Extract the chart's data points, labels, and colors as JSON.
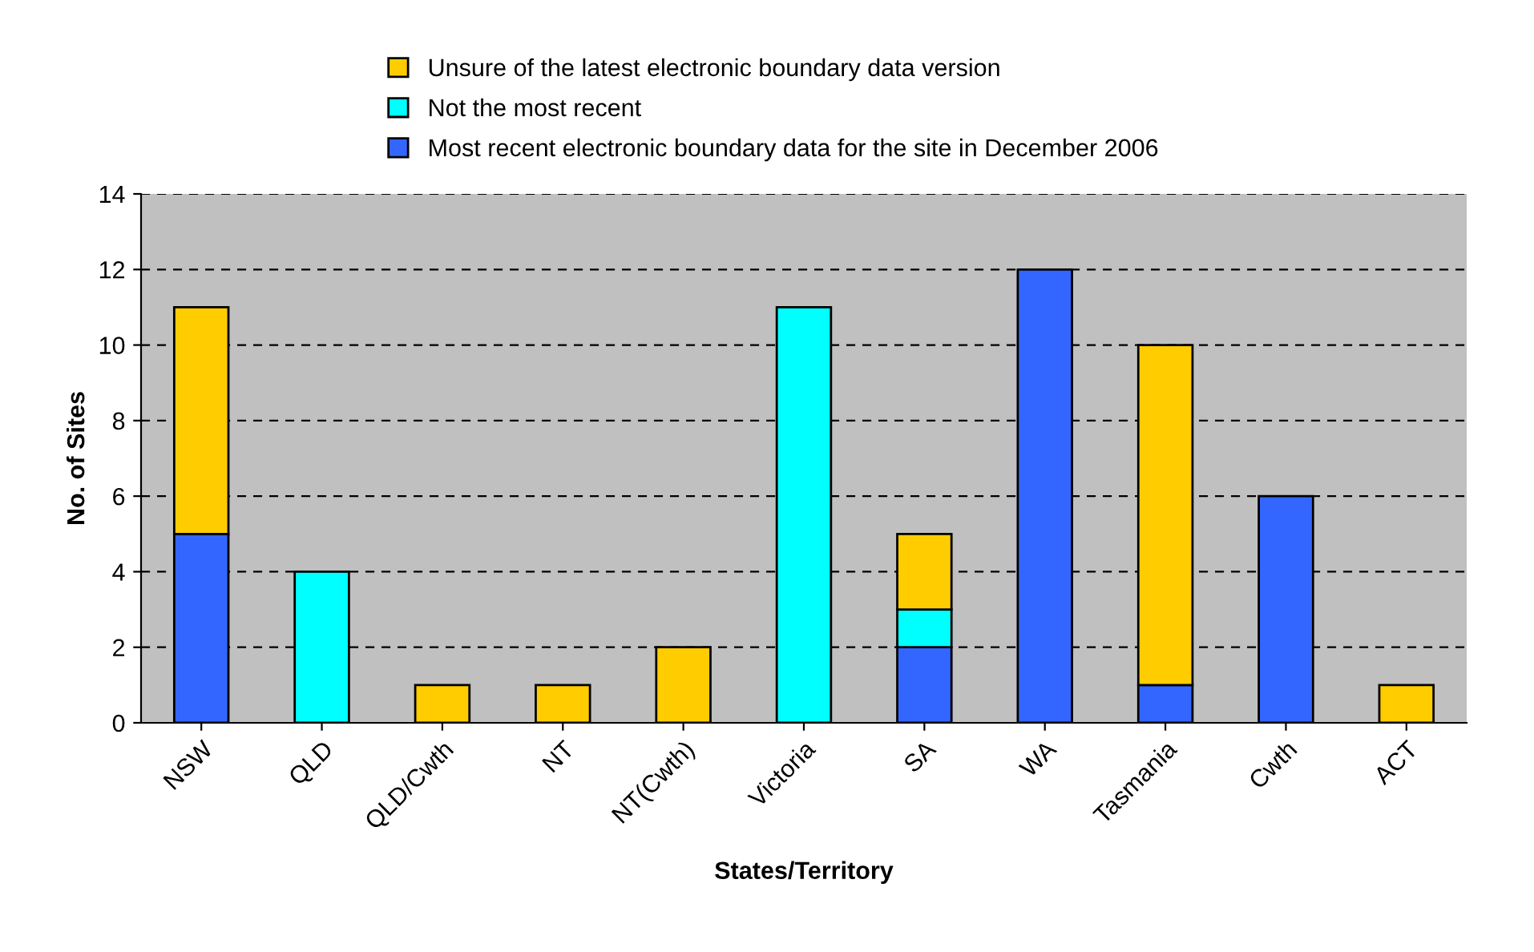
{
  "chart_data": {
    "type": "bar",
    "stacked": true,
    "xlabel": "States/Territory",
    "ylabel": "No. of Sites",
    "categories": [
      "NSW",
      "QLD",
      "QLD/Cwth",
      "NT",
      "NT(Cwth)",
      "Victoria",
      "SA",
      "WA",
      "Tasmania",
      "Cwth",
      "ACT"
    ],
    "series": [
      {
        "name": "Most recent electronic boundary data for the site in December 2006",
        "color": "#3366ff",
        "values": [
          5,
          null,
          null,
          null,
          null,
          null,
          2,
          12,
          1,
          6,
          null
        ]
      },
      {
        "name": "Not the most recent",
        "color": "#00ffff",
        "values": [
          null,
          4,
          null,
          null,
          null,
          11,
          1,
          null,
          null,
          null,
          null
        ]
      },
      {
        "name": "Unsure of the latest electronic boundary data version",
        "color": "#ffcc00",
        "values": [
          6,
          null,
          1,
          1,
          2,
          null,
          2,
          null,
          9,
          null,
          1
        ]
      }
    ],
    "ylim": [
      0,
      14
    ],
    "yticks": [
      0,
      2,
      4,
      6,
      8,
      10,
      12,
      14
    ],
    "grid": "y",
    "legend": "top"
  }
}
